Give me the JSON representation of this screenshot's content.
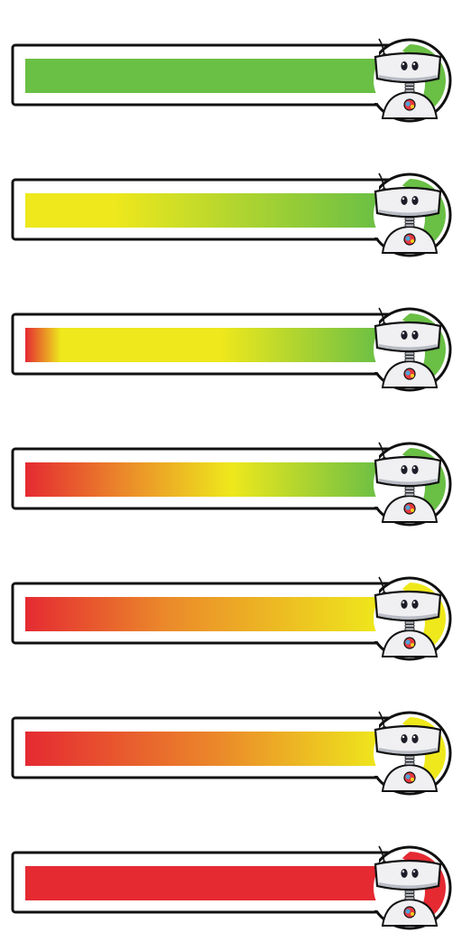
{
  "colors": {
    "green": "#6abf45",
    "yellow": "#eee81c",
    "orange": "#eb8a2a",
    "red": "#e52a32",
    "outline": "#111111",
    "robot_body": "#f0f0f2",
    "robot_shade": "#b9bcc4",
    "eye": "#1d1d29"
  },
  "bars": [
    {
      "name": "health-bar-full",
      "stops": [
        [
          "#6abf45",
          0
        ],
        [
          "#6abf45",
          1
        ]
      ],
      "badge": "#6abf45"
    },
    {
      "name": "health-bar-green-yellow",
      "stops": [
        [
          "#eee81c",
          0
        ],
        [
          "#eee81c",
          0.25
        ],
        [
          "#6abf45",
          1
        ]
      ],
      "badge": "#6abf45"
    },
    {
      "name": "health-bar-yellow-green",
      "stops": [
        [
          "#e52a32",
          0
        ],
        [
          "#eee81c",
          0.1
        ],
        [
          "#eee81c",
          0.55
        ],
        [
          "#6abf45",
          1
        ]
      ],
      "badge": "#6abf45"
    },
    {
      "name": "health-bar-red-yellow-green",
      "stops": [
        [
          "#e52a32",
          0
        ],
        [
          "#eb8a2a",
          0.28
        ],
        [
          "#eee81c",
          0.58
        ],
        [
          "#6abf45",
          1
        ]
      ],
      "badge": "#6abf45"
    },
    {
      "name": "health-bar-red-orange-yellow",
      "stops": [
        [
          "#e52a32",
          0
        ],
        [
          "#eb8a2a",
          0.4
        ],
        [
          "#eee81c",
          1
        ]
      ],
      "badge": "#eee81c"
    },
    {
      "name": "health-bar-red-orange",
      "stops": [
        [
          "#e52a32",
          0
        ],
        [
          "#eb8a2a",
          0.55
        ],
        [
          "#eee81c",
          1
        ]
      ],
      "badge": "#eee81c"
    },
    {
      "name": "health-bar-empty",
      "stops": [
        [
          "#e52a32",
          0
        ],
        [
          "#e52a32",
          1
        ]
      ],
      "badge": "#e52a32"
    }
  ]
}
